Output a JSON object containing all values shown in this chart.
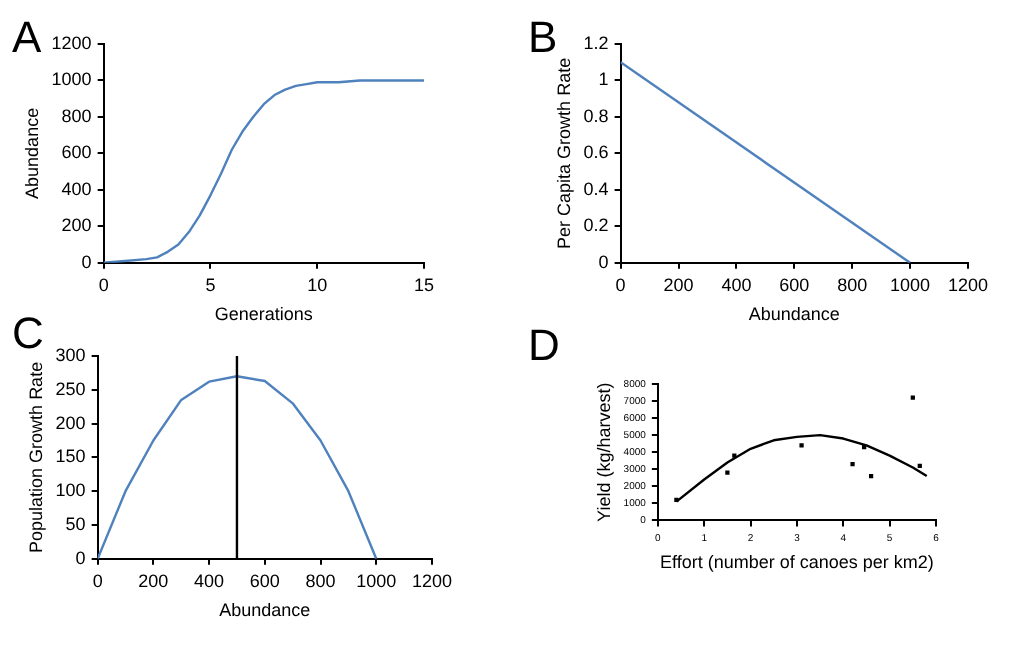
{
  "chart_data": [
    {
      "type": "line",
      "title": "A",
      "xlabel": "Generations",
      "ylabel": "Abundance",
      "xlim": [
        0,
        15
      ],
      "xticks": [
        0,
        5,
        10,
        15
      ],
      "ylim": [
        0,
        1200
      ],
      "yticks": [
        0,
        200,
        400,
        600,
        800,
        1000,
        1200
      ],
      "grid": false,
      "marker": "none",
      "line_style": "solid",
      "series": [
        {
          "color": "#4f81bd",
          "x": [
            0,
            1,
            2,
            2.5,
            3,
            3.5,
            4,
            4.5,
            5,
            5.5,
            6,
            6.5,
            7,
            7.5,
            8,
            8.5,
            9,
            9.5,
            10,
            11,
            12,
            13,
            14,
            15
          ],
          "values": [
            0,
            10,
            20,
            30,
            60,
            100,
            170,
            260,
            370,
            490,
            620,
            720,
            800,
            870,
            920,
            950,
            970,
            980,
            990,
            990,
            1000,
            1000,
            1000,
            1000
          ]
        }
      ]
    },
    {
      "type": "line",
      "title": "B",
      "xlabel": "Abundance",
      "ylabel": "Per Capita Growth Rate",
      "xlim": [
        0,
        1200
      ],
      "xticks": [
        0,
        200,
        400,
        600,
        800,
        1000,
        1200
      ],
      "ylim": [
        0,
        1.2
      ],
      "yticks": [
        0,
        0.2,
        0.4,
        0.6,
        0.8,
        1,
        1.2
      ],
      "grid": false,
      "marker": "none",
      "line_style": "solid",
      "series": [
        {
          "color": "#4f81bd",
          "x": [
            0,
            1000
          ],
          "values": [
            1.1,
            0
          ]
        }
      ]
    },
    {
      "type": "line",
      "title": "C",
      "xlabel": "Abundance",
      "ylabel": "Population Growth Rate",
      "xlim": [
        0,
        1200
      ],
      "xticks": [
        0,
        200,
        400,
        600,
        800,
        1000,
        1200
      ],
      "ylim": [
        0,
        300
      ],
      "yticks": [
        0,
        50,
        100,
        150,
        200,
        250,
        300
      ],
      "grid": false,
      "marker": "none",
      "line_style": "solid",
      "ref_lines": [
        {
          "axis": "x",
          "value": 500,
          "color": "#000000"
        }
      ],
      "series": [
        {
          "color": "#4f81bd",
          "x": [
            0,
            100,
            200,
            300,
            400,
            500,
            600,
            700,
            800,
            900,
            1000
          ],
          "values": [
            0,
            100,
            175,
            235,
            262,
            270,
            263,
            230,
            175,
            100,
            0
          ]
        }
      ]
    },
    {
      "type": "scatter",
      "title": "D",
      "xlabel": "Effort (number of canoes per km2)",
      "ylabel": "Yield (kg/harvest)",
      "xlim": [
        0,
        6
      ],
      "xticks": [
        0,
        1,
        2,
        3,
        4,
        5,
        6
      ],
      "ylim": [
        0,
        8000
      ],
      "yticks": [
        0,
        1000,
        2000,
        3000,
        4000,
        5000,
        6000,
        7000,
        8000
      ],
      "grid": false,
      "marker": "square",
      "series": [
        {
          "color": "#000000",
          "x": [
            0.4,
            1.5,
            1.65,
            3.1,
            4.2,
            4.45,
            4.6,
            5.5,
            5.65
          ],
          "values": [
            1200,
            2800,
            3800,
            4400,
            3300,
            4300,
            2600,
            7200,
            3200
          ]
        },
        {
          "type": "line",
          "marker": "none",
          "color": "#000000",
          "x": [
            0.4,
            1,
            1.5,
            2,
            2.5,
            3,
            3.5,
            4,
            4.5,
            5,
            5.5,
            5.8
          ],
          "values": [
            1100,
            2400,
            3400,
            4200,
            4700,
            4900,
            5000,
            4800,
            4400,
            3800,
            3100,
            2600
          ]
        }
      ]
    }
  ]
}
